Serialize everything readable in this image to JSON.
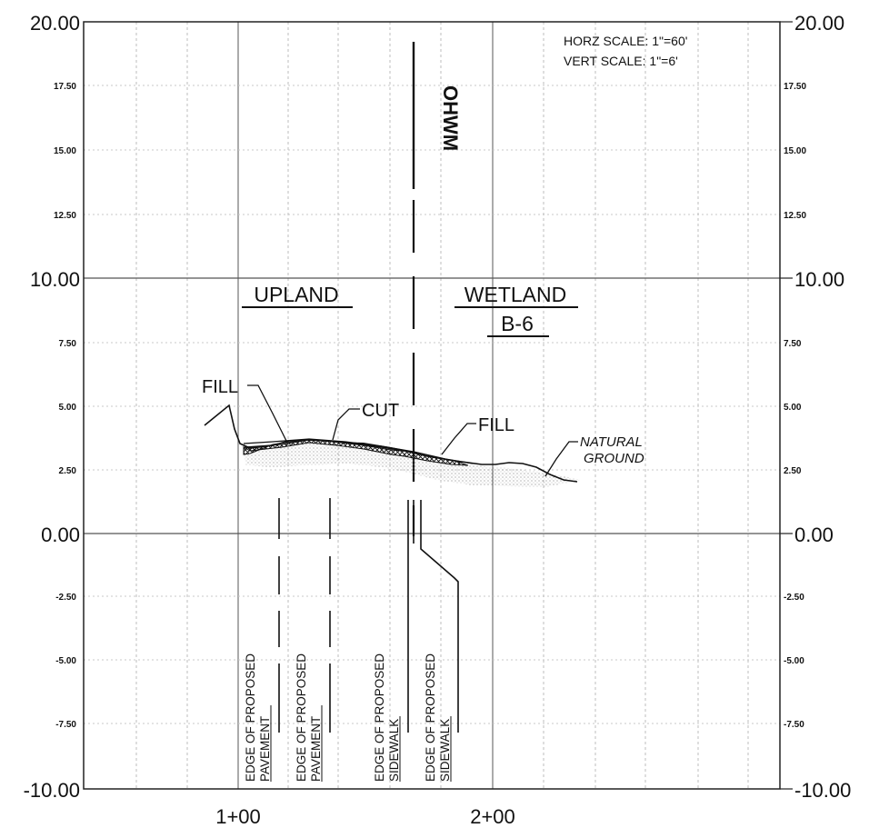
{
  "scale_note": {
    "horz": "HORZ SCALE:  1\"=60'",
    "vert": "VERT SCALE:   1\"=6'"
  },
  "y_axis": {
    "major_labels": [
      "20.00",
      "10.00",
      "0.00",
      "-10.00"
    ],
    "minor_labels": [
      "17.50",
      "15.00",
      "12.50",
      "7.50",
      "5.00",
      "2.50",
      "-2.50",
      "-5.00",
      "-7.50"
    ]
  },
  "x_axis": {
    "labels": [
      "1+00",
      "2+00"
    ]
  },
  "annotations": {
    "upland": "UPLAND",
    "wetland": "WETLAND",
    "wetland_id": "B-6",
    "ohwm": "OHWM",
    "fill_left": "FILL",
    "cut": "CUT",
    "fill_right": "FILL",
    "natural_ground_1": "NATURAL",
    "natural_ground_2": "GROUND"
  },
  "edge_labels": [
    {
      "line1": "EDGE OF PROPOSED",
      "line2": "PAVEMENT"
    },
    {
      "line1": "EDGE OF PROPOSED",
      "line2": "PAVEMENT"
    },
    {
      "line1": "EDGE OF PROPOSED",
      "line2": "SIDEWALK"
    },
    {
      "line1": "EDGE OF PROPOSED",
      "line2": "SIDEWALK"
    }
  ]
}
